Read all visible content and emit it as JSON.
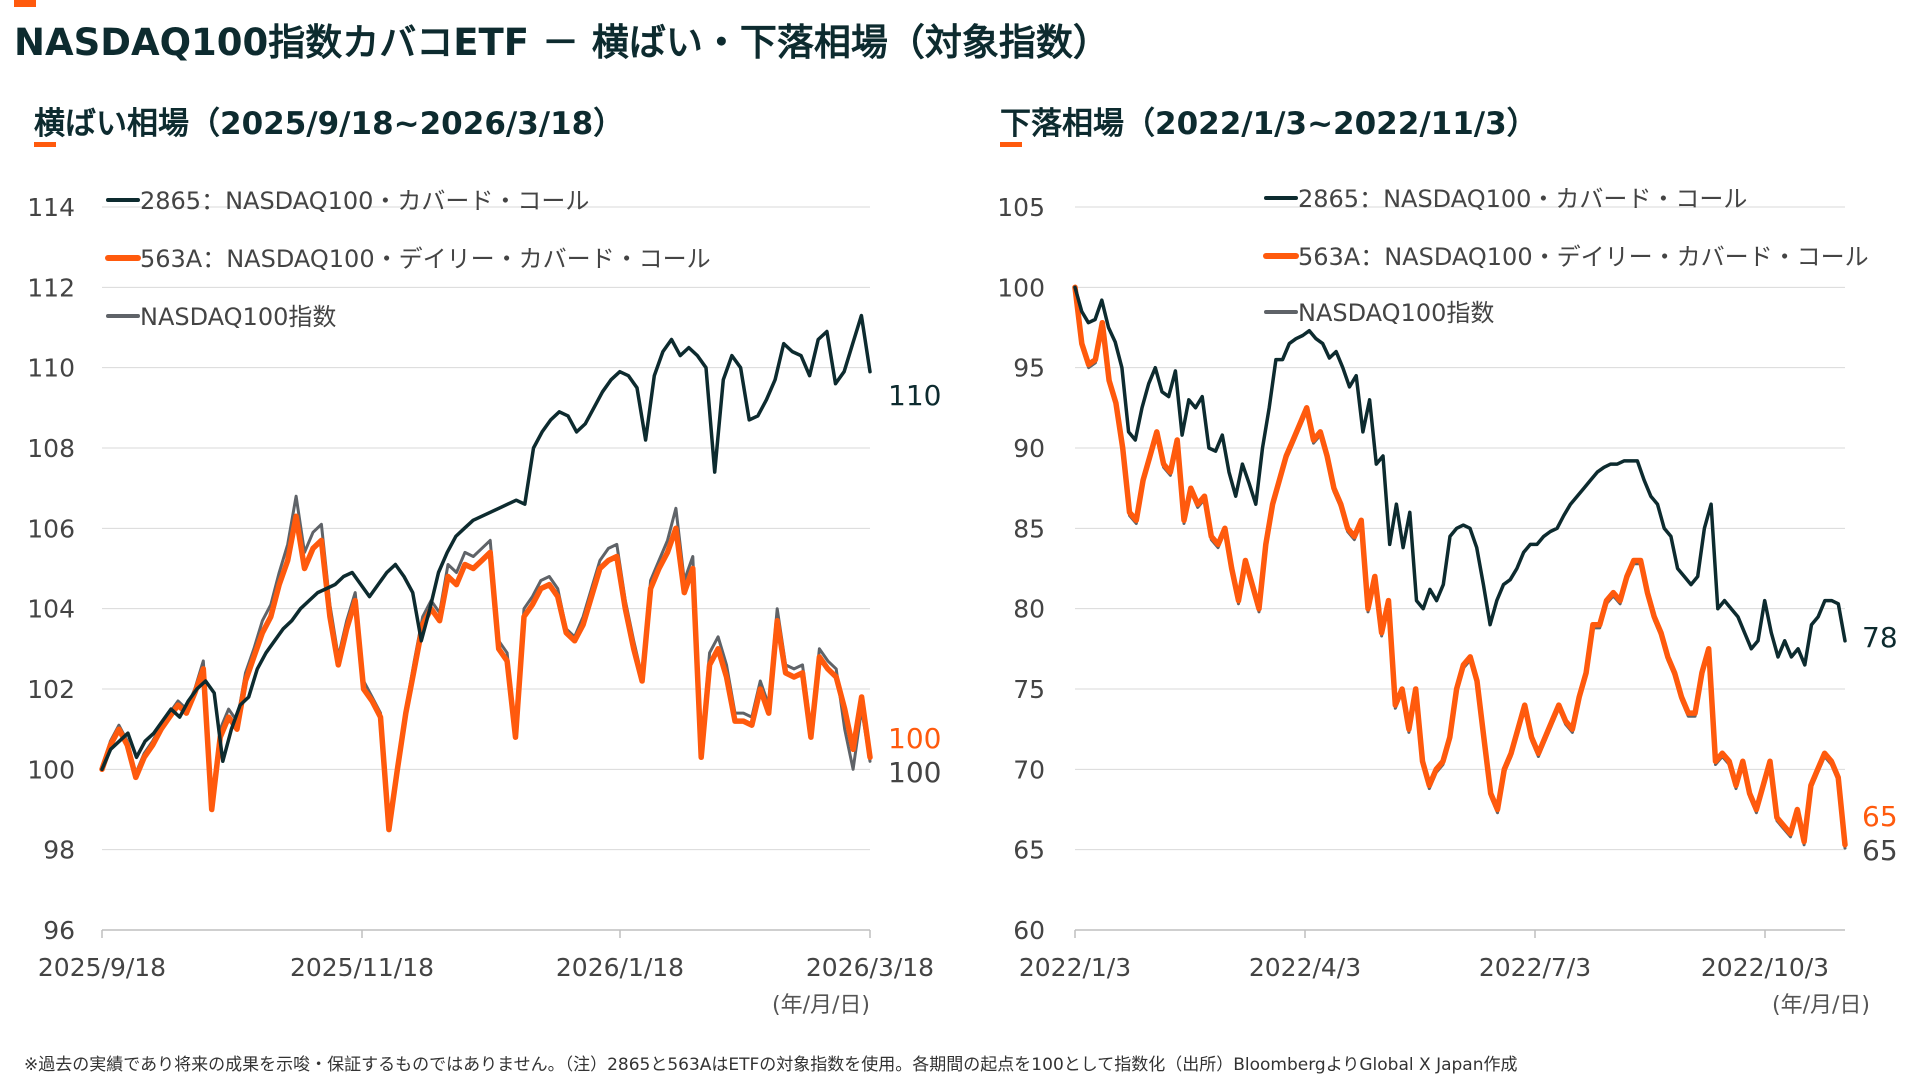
{
  "title": "NASDAQ100指数カバコETF － 横ばい・下落相場（対象指数）",
  "footnote": "※過去の実績であり将来の成果を示唆・保証するものではありません。（注）2865と563AはETFの対象指数を使用。各期間の起点を100として指数化（出所）BloombergよりGlobal X Japan作成",
  "colors": {
    "accent": "#ff5a0d",
    "dark_green": "#0d2b2f",
    "gray": "#5f6368"
  },
  "chart_data": [
    {
      "type": "line",
      "title": "横ばい相場（2025/9/18~2026/3/18）",
      "xlabel": "(年/月/日)",
      "x_ticks": [
        "2025/9/18",
        "2025/11/18",
        "2026/1/18",
        "2026/3/18"
      ],
      "ylim": [
        96,
        114
      ],
      "y_ticks": [
        96,
        98,
        100,
        102,
        104,
        106,
        108,
        110,
        112,
        114
      ],
      "grid": true,
      "legend": "top-left",
      "series": [
        {
          "name": "2865：NASDAQ100・カバード・コール",
          "color": "#0d2b2f",
          "end_label": "110",
          "values": [
            100.0,
            100.5,
            100.7,
            100.9,
            100.3,
            100.7,
            100.9,
            101.2,
            101.5,
            101.3,
            101.7,
            102.0,
            102.2,
            101.9,
            100.2,
            101.0,
            101.6,
            101.8,
            102.5,
            102.9,
            103.2,
            103.5,
            103.7,
            104.0,
            104.2,
            104.4,
            104.5,
            104.6,
            104.8,
            104.9,
            104.6,
            104.3,
            104.6,
            104.9,
            105.1,
            104.8,
            104.4,
            103.2,
            104.0,
            104.9,
            105.4,
            105.8,
            106.0,
            106.2,
            106.3,
            106.4,
            106.5,
            106.6,
            106.7,
            106.6,
            108.0,
            108.4,
            108.7,
            108.9,
            108.8,
            108.4,
            108.6,
            109.0,
            109.4,
            109.7,
            109.9,
            109.8,
            109.5,
            108.2,
            109.8,
            110.4,
            110.7,
            110.3,
            110.5,
            110.3,
            110.0,
            107.4,
            109.7,
            110.3,
            110.0,
            108.7,
            108.8,
            109.2,
            109.7,
            110.6,
            110.4,
            110.3,
            109.8,
            110.7,
            110.9,
            109.6,
            109.9,
            110.6,
            111.3,
            109.9
          ]
        },
        {
          "name": "563A：NASDAQ100・デイリー・カバード・コール",
          "color": "#ff5a0d",
          "end_label": "100",
          "values": [
            100.0,
            100.6,
            101.0,
            100.6,
            99.8,
            100.3,
            100.6,
            101.0,
            101.3,
            101.6,
            101.4,
            101.9,
            102.5,
            99.0,
            100.8,
            101.3,
            101.0,
            102.2,
            102.8,
            103.4,
            103.8,
            104.6,
            105.2,
            106.3,
            105.0,
            105.5,
            105.7,
            103.8,
            102.6,
            103.5,
            104.2,
            102.0,
            101.7,
            101.3,
            98.5,
            100.0,
            101.4,
            102.5,
            103.6,
            104.0,
            103.7,
            104.8,
            104.6,
            105.1,
            105.0,
            105.2,
            105.4,
            103.0,
            102.7,
            100.8,
            103.8,
            104.1,
            104.5,
            104.6,
            104.3,
            103.4,
            103.2,
            103.6,
            104.3,
            105.0,
            105.2,
            105.3,
            104.0,
            103.0,
            102.2,
            104.5,
            105.0,
            105.4,
            106.0,
            104.4,
            105.0,
            100.3,
            102.6,
            103.0,
            102.3,
            101.2,
            101.2,
            101.1,
            102.0,
            101.4,
            103.7,
            102.4,
            102.3,
            102.4,
            100.8,
            102.8,
            102.5,
            102.3,
            101.5,
            100.5,
            101.8,
            100.3
          ]
        },
        {
          "name": "NASDAQ100指数",
          "color": "#5f6368",
          "end_label": "100",
          "values": [
            100.0,
            100.7,
            101.1,
            100.7,
            99.9,
            100.4,
            100.7,
            101.1,
            101.4,
            101.7,
            101.5,
            102.0,
            102.7,
            99.2,
            101.0,
            101.5,
            101.2,
            102.4,
            103.0,
            103.7,
            104.1,
            104.9,
            105.6,
            106.8,
            105.4,
            105.9,
            106.1,
            104.1,
            102.8,
            103.7,
            104.4,
            102.2,
            101.8,
            101.4,
            98.6,
            100.1,
            101.5,
            102.7,
            103.8,
            104.2,
            103.9,
            105.1,
            104.9,
            105.4,
            105.3,
            105.5,
            105.7,
            103.2,
            102.9,
            101.0,
            104.0,
            104.3,
            104.7,
            104.8,
            104.5,
            103.5,
            103.3,
            103.8,
            104.5,
            105.2,
            105.5,
            105.6,
            104.2,
            103.2,
            102.3,
            104.7,
            105.2,
            105.7,
            106.5,
            104.7,
            105.3,
            100.5,
            102.9,
            103.3,
            102.6,
            101.4,
            101.4,
            101.3,
            102.2,
            101.6,
            104.0,
            102.6,
            102.5,
            102.6,
            101.0,
            103.0,
            102.7,
            102.5,
            101.0,
            100.0,
            101.5,
            100.2
          ]
        }
      ]
    },
    {
      "type": "line",
      "title": "下落相場（2022/1/3~2022/11/3）",
      "xlabel": "(年/月/日)",
      "x_ticks": [
        "2022/1/3",
        "2022/4/3",
        "2022/7/3",
        "2022/10/3"
      ],
      "ylim": [
        60,
        105
      ],
      "y_ticks": [
        60,
        65,
        70,
        75,
        80,
        85,
        90,
        95,
        100,
        105
      ],
      "grid": true,
      "legend": "top-right",
      "series": [
        {
          "name": "2865：NASDAQ100・カバード・コール",
          "color": "#0d2b2f",
          "end_label": "78",
          "values": [
            100.0,
            98.5,
            97.8,
            98.0,
            99.2,
            97.5,
            96.6,
            95.0,
            91.0,
            90.5,
            92.5,
            94.0,
            95.0,
            93.5,
            93.2,
            94.8,
            90.8,
            93.0,
            92.5,
            93.2,
            90.0,
            89.8,
            90.8,
            88.5,
            87.0,
            89.0,
            87.8,
            86.5,
            90.0,
            92.5,
            95.5,
            95.5,
            96.5,
            96.8,
            97.0,
            97.3,
            96.8,
            96.5,
            95.6,
            96.0,
            95.0,
            93.8,
            94.5,
            91.0,
            93.0,
            89.0,
            89.5,
            84.0,
            86.5,
            83.8,
            86.0,
            80.5,
            80.0,
            81.2,
            80.5,
            81.5,
            84.5,
            85.0,
            85.2,
            85.0,
            83.8,
            81.5,
            79.0,
            80.5,
            81.5,
            81.8,
            82.5,
            83.5,
            84.0,
            84.0,
            84.5,
            84.8,
            85.0,
            85.8,
            86.5,
            87.0,
            87.5,
            88.0,
            88.5,
            88.8,
            89.0,
            89.0,
            89.2,
            89.2,
            89.2,
            88.0,
            87.0,
            86.5,
            85.0,
            84.5,
            82.5,
            82.0,
            81.5,
            82.0,
            85.0,
            86.5,
            80.0,
            80.5,
            80.0,
            79.5,
            78.5,
            77.5,
            78.0,
            80.5,
            78.5,
            77.0,
            78.0,
            77.0,
            77.5,
            76.5,
            79.0,
            79.5,
            80.5,
            80.5,
            80.3,
            78.0
          ]
        },
        {
          "name": "563A：NASDAQ100・デイリー・カバード・コール",
          "color": "#ff5a0d",
          "end_label": "65",
          "values": [
            100.0,
            96.5,
            95.2,
            95.5,
            97.8,
            94.2,
            92.8,
            90.0,
            86.0,
            85.5,
            88.0,
            89.5,
            91.0,
            89.0,
            88.5,
            90.5,
            85.5,
            87.5,
            86.5,
            87.0,
            84.5,
            84.0,
            85.0,
            82.5,
            80.5,
            83.0,
            81.5,
            80.0,
            84.0,
            86.5,
            88.0,
            89.5,
            90.5,
            91.5,
            92.5,
            90.5,
            91.0,
            89.5,
            87.5,
            86.5,
            85.0,
            84.5,
            85.5,
            80.0,
            82.0,
            78.5,
            80.5,
            74.0,
            75.0,
            72.5,
            75.0,
            70.5,
            69.0,
            70.0,
            70.5,
            72.0,
            75.0,
            76.5,
            77.0,
            75.5,
            72.0,
            68.5,
            67.5,
            70.0,
            71.0,
            72.5,
            74.0,
            72.0,
            71.0,
            72.0,
            73.0,
            74.0,
            73.0,
            72.5,
            74.5,
            76.0,
            79.0,
            79.0,
            80.5,
            81.0,
            80.5,
            82.0,
            83.0,
            83.0,
            81.0,
            79.5,
            78.5,
            77.0,
            76.0,
            74.5,
            73.5,
            73.5,
            76.0,
            77.5,
            70.5,
            71.0,
            70.5,
            69.0,
            70.5,
            68.5,
            67.5,
            69.0,
            70.5,
            67.0,
            66.5,
            66.0,
            67.5,
            65.5,
            69.0,
            70.0,
            71.0,
            70.5,
            69.5,
            65.3
          ]
        },
        {
          "name": "NASDAQ100指数",
          "color": "#5f6368",
          "end_label": "65",
          "values": [
            100.0,
            96.3,
            95.0,
            95.3,
            97.5,
            94.0,
            92.6,
            89.8,
            85.8,
            85.3,
            87.8,
            89.3,
            90.8,
            88.8,
            88.3,
            90.3,
            85.3,
            87.3,
            86.3,
            86.8,
            84.3,
            83.8,
            84.8,
            82.3,
            80.3,
            82.8,
            81.3,
            79.8,
            83.8,
            86.3,
            87.8,
            89.3,
            90.3,
            91.3,
            92.3,
            90.3,
            90.8,
            89.3,
            87.3,
            86.3,
            84.8,
            84.3,
            85.3,
            79.8,
            81.8,
            78.3,
            80.3,
            73.8,
            74.8,
            72.3,
            74.8,
            70.3,
            68.8,
            69.8,
            70.3,
            71.8,
            74.8,
            76.3,
            76.8,
            75.3,
            71.8,
            68.3,
            67.3,
            69.8,
            70.8,
            72.3,
            73.8,
            71.8,
            70.8,
            71.8,
            72.8,
            73.8,
            72.8,
            72.3,
            74.3,
            75.8,
            78.8,
            78.8,
            80.3,
            80.8,
            80.3,
            81.8,
            82.8,
            82.8,
            80.8,
            79.3,
            78.3,
            76.8,
            75.8,
            74.3,
            73.3,
            73.3,
            75.8,
            77.3,
            70.3,
            70.8,
            70.3,
            68.8,
            70.3,
            68.3,
            67.3,
            68.8,
            70.3,
            66.8,
            66.3,
            65.8,
            67.3,
            65.3,
            68.8,
            69.8,
            70.8,
            70.3,
            69.3,
            65.1
          ]
        }
      ]
    }
  ]
}
